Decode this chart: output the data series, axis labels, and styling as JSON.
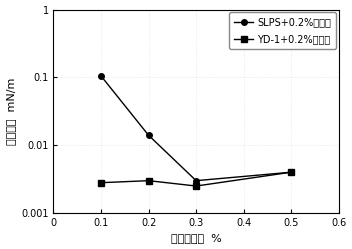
{
  "series1_label": "SLPS+0.2%乙醇胺",
  "series2_label": "YD-1+0.2%乙醇胺",
  "series1_x": [
    0.1,
    0.2,
    0.3,
    0.5
  ],
  "series1_y": [
    0.105,
    0.014,
    0.003,
    0.004
  ],
  "series2_x": [
    0.1,
    0.2,
    0.3,
    0.5
  ],
  "series2_y": [
    0.0028,
    0.003,
    0.0025,
    0.004
  ],
  "series1_color": "#000000",
  "series2_color": "#000000",
  "series1_marker": "o",
  "series2_marker": "s",
  "xlabel": "活性剂浓度  %",
  "ylabel": "界面张力  mN/m",
  "xlim": [
    0,
    0.6
  ],
  "ylim": [
    0.001,
    1
  ],
  "xticks": [
    0,
    0.1,
    0.2,
    0.3,
    0.4,
    0.5,
    0.6
  ],
  "ytick_vals": [
    0.001,
    0.01,
    0.1,
    1
  ],
  "ytick_labels": [
    "0.001",
    "0.01",
    "0.1",
    "1"
  ],
  "label_fontsize": 8,
  "tick_fontsize": 7,
  "legend_fontsize": 7,
  "linewidth": 1.0,
  "markersize": 4
}
